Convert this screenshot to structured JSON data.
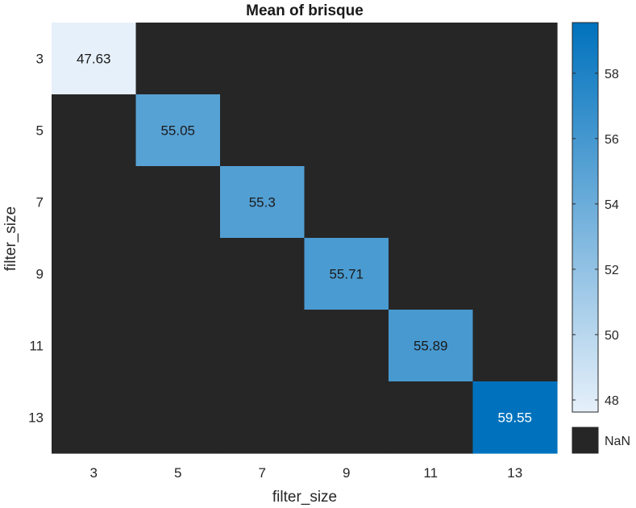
{
  "chart_data": {
    "type": "heatmap",
    "title": "Mean of brisque",
    "xlabel": "filter_size",
    "ylabel": "filter_size",
    "x_categories": [
      "3",
      "5",
      "7",
      "9",
      "11",
      "13"
    ],
    "y_categories": [
      "3",
      "5",
      "7",
      "9",
      "11",
      "13"
    ],
    "values": [
      [
        47.63,
        null,
        null,
        null,
        null,
        null
      ],
      [
        null,
        55.05,
        null,
        null,
        null,
        null
      ],
      [
        null,
        null,
        55.3,
        null,
        null,
        null
      ],
      [
        null,
        null,
        null,
        55.71,
        null,
        null
      ],
      [
        null,
        null,
        null,
        null,
        55.89,
        null
      ],
      [
        null,
        null,
        null,
        null,
        null,
        59.55
      ]
    ],
    "value_labels": [
      [
        "47.63",
        "",
        "",
        "",
        "",
        ""
      ],
      [
        "",
        "55.05",
        "",
        "",
        "",
        ""
      ],
      [
        "",
        "",
        "55.3",
        "",
        "",
        ""
      ],
      [
        "",
        "",
        "",
        "55.71",
        "",
        ""
      ],
      [
        "",
        "",
        "",
        "",
        "55.89",
        ""
      ],
      [
        "",
        "",
        "",
        "",
        "",
        "59.55"
      ]
    ],
    "colorbar": {
      "min": 47.63,
      "max": 59.55,
      "ticks": [
        48,
        50,
        52,
        54,
        56,
        58
      ],
      "tick_labels": [
        "48",
        "50",
        "52",
        "54",
        "56",
        "58"
      ],
      "colormap": "white-to-blue",
      "color_low": "#e6f0fa",
      "color_high": "#0072bd"
    },
    "nan_label": "NaN",
    "nan_color": "#262626"
  }
}
